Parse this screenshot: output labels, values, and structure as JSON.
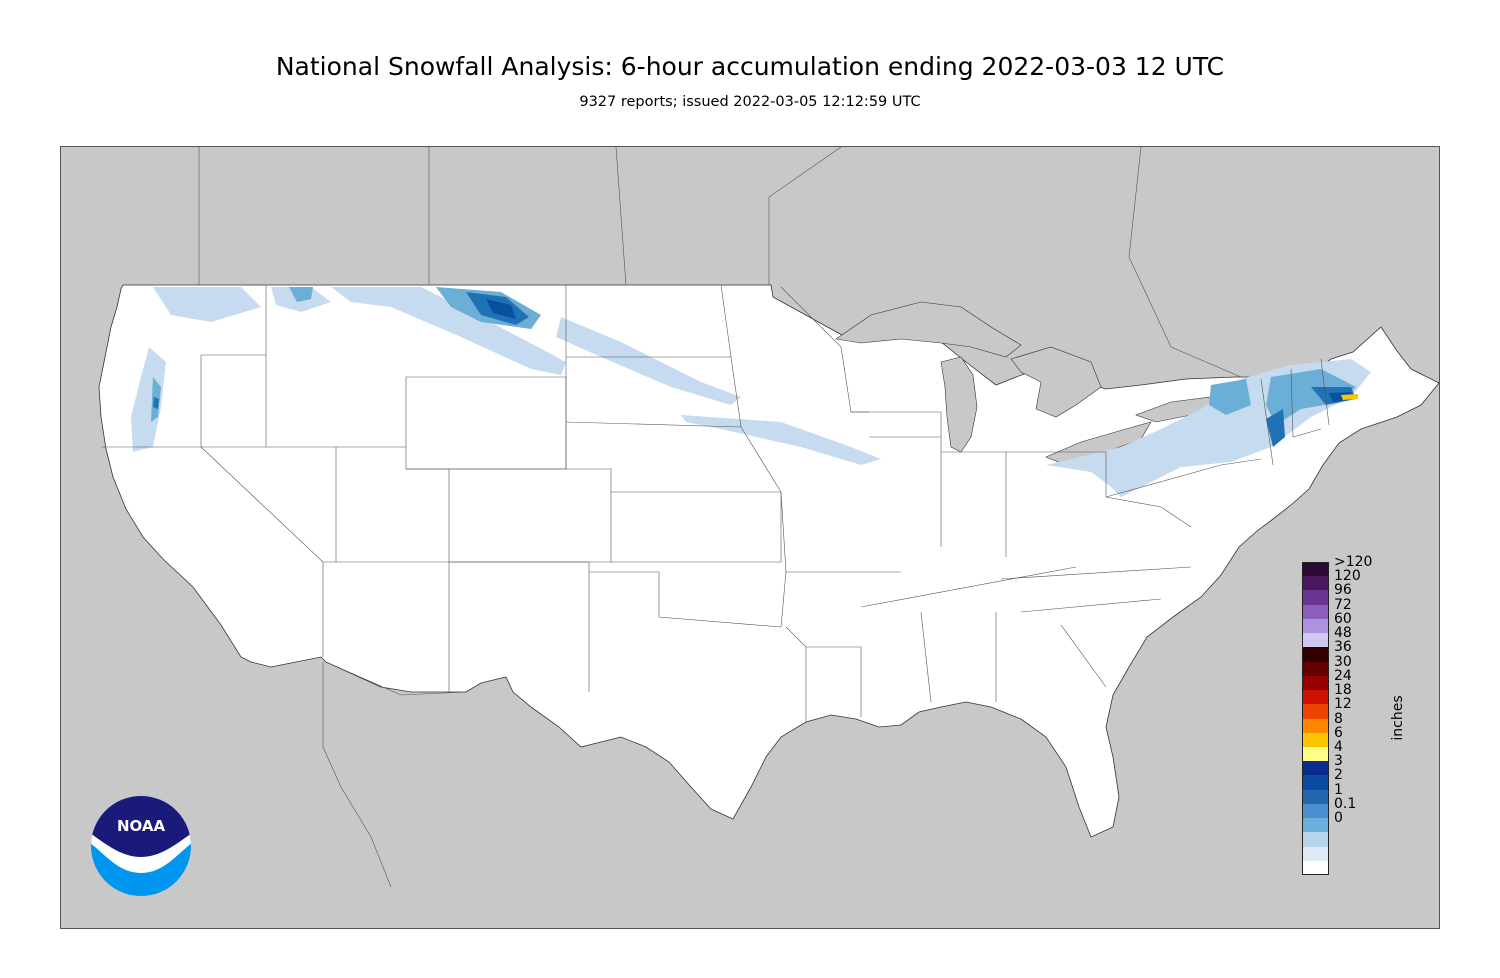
{
  "header": {
    "title": "National Snowfall Analysis: 6-hour accumulation ending 2022-03-03 12 UTC",
    "subtitle": "9327 reports; issued 2022-03-05 12:12:59 UTC"
  },
  "legend": {
    "units": "inches",
    "entries": [
      {
        "label": ">120",
        "color": "#2a0a33"
      },
      {
        "label": "120",
        "color": "#4a1760"
      },
      {
        "label": "96",
        "color": "#6a3590"
      },
      {
        "label": "72",
        "color": "#8c5fbf"
      },
      {
        "label": "60",
        "color": "#ab94dd"
      },
      {
        "label": "48",
        "color": "#cfc8f2"
      },
      {
        "label": "36",
        "color": "#330000"
      },
      {
        "label": "30",
        "color": "#660000"
      },
      {
        "label": "24",
        "color": "#990000"
      },
      {
        "label": "18",
        "color": "#cc1100"
      },
      {
        "label": "12",
        "color": "#ee4400"
      },
      {
        "label": "8",
        "color": "#ff8800"
      },
      {
        "label": "6",
        "color": "#ffc400"
      },
      {
        "label": "4",
        "color": "#ffff88"
      },
      {
        "label": "3",
        "color": "#0a2b8c"
      },
      {
        "label": "2",
        "color": "#0a4aa3"
      },
      {
        "label": "1",
        "color": "#2166ac"
      },
      {
        "label": "0.1",
        "color": "#4a8fd0"
      },
      {
        "label": "0",
        "color": "#6aaedc"
      }
    ],
    "low_colors": [
      "#b7d4ea",
      "#dde9f4",
      "#ffffff"
    ]
  },
  "map": {
    "land_outside_color": "#c8c8c8",
    "land_us_color": "#ffffff",
    "snow_light": "#c6dbef",
    "snow_mid": "#6baed6",
    "snow_heavy": "#2171b5",
    "snow_peak": "#08519c",
    "snow_max": "#ffc400"
  },
  "logo": {
    "text": "NOAA",
    "top_color": "#1a1a7a",
    "bottom_color": "#0096f0"
  }
}
